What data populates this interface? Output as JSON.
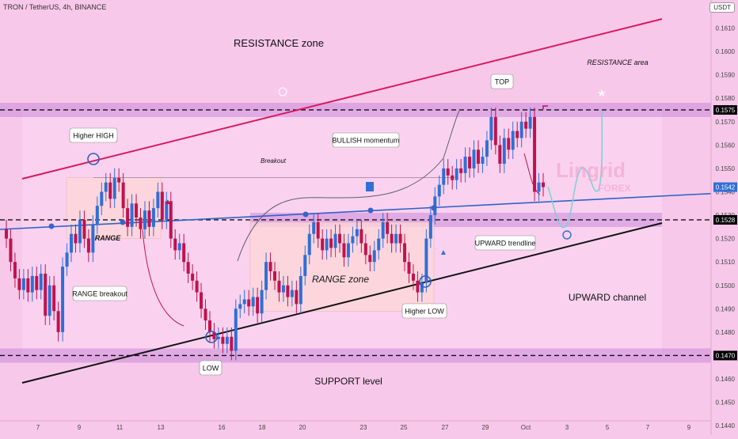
{
  "header": {
    "symbol": "TRON / TetherUS, 4h, BINANCE",
    "currency": "USDT"
  },
  "watermark": {
    "brand": "Lingrid",
    "sub": "FOREX"
  },
  "colors": {
    "background": "#f8c8ea",
    "up": "#2f6fd6",
    "down": "#c0124e",
    "resistance_line": "#d8195e",
    "support_line": "#111111",
    "trendline": "#2d62c8",
    "zone_band": "#c07ad6",
    "range_box": "#ffd8d8",
    "projection": "#7fd0d8"
  },
  "chart_data": {
    "type": "candlestick",
    "title": "",
    "xlabel": "",
    "ylabel": "",
    "x_ticks": [
      "7",
      "9",
      "11",
      "13",
      "16",
      "18",
      "20",
      "23",
      "25",
      "27",
      "29",
      "Oct",
      "3",
      "5",
      "7",
      "9"
    ],
    "y_ticks": [
      "0.1610",
      "0.1600",
      "0.1590",
      "0.1580",
      "0.1570",
      "0.1560",
      "0.1550",
      "0.1540",
      "0.1530",
      "0.1520",
      "0.1510",
      "0.1500",
      "0.1490",
      "0.1480",
      "0.1460",
      "0.1450",
      "0.1440"
    ],
    "ylim": [
      0.1436,
      0.1622
    ],
    "price_labels": [
      {
        "value": 0.1575,
        "text": "0.1575",
        "color": "#000000"
      },
      {
        "value": 0.1542,
        "text": "0.1542",
        "color": "#2f6fd6"
      },
      {
        "value": 0.1528,
        "text": "0.1528",
        "color": "#000000"
      },
      {
        "value": 0.147,
        "text": "0.1470",
        "color": "#000000"
      }
    ],
    "key_levels": [
      0.1575,
      0.1528,
      0.147
    ],
    "series": [
      {
        "name": "",
        "values": [
          0.152,
          0.151,
          0.1503,
          0.1498,
          0.1503,
          0.1497,
          0.1504,
          0.1498,
          0.1505,
          0.1487,
          0.15,
          0.1489,
          0.148,
          0.1508,
          0.1514,
          0.1522,
          0.1518,
          0.1528,
          0.152,
          0.1514,
          0.1526,
          0.1534,
          0.154,
          0.1544,
          0.1537,
          0.1546,
          0.1544,
          0.1533,
          0.1525,
          0.1535,
          0.1529,
          0.1524,
          0.1532,
          0.1525,
          0.1533,
          0.154,
          0.1528,
          0.1536,
          0.152,
          0.1515,
          0.1518,
          0.151,
          0.1505,
          0.1502,
          0.1497,
          0.149,
          0.1485,
          0.148,
          0.1477,
          0.1478,
          0.1475,
          0.1478,
          0.1472,
          0.149,
          0.1492,
          0.1494,
          0.1491,
          0.1495,
          0.1488,
          0.1498,
          0.151,
          0.1506,
          0.1502,
          0.1497,
          0.15,
          0.1495,
          0.1498,
          0.1492,
          0.1504,
          0.1513,
          0.1522,
          0.1527,
          0.152,
          0.1515,
          0.152,
          0.1516,
          0.1522,
          0.1518,
          0.1512,
          0.1518,
          0.1521,
          0.1524,
          0.1518,
          0.1513,
          0.151,
          0.1515,
          0.152,
          0.1527,
          0.1522,
          0.1518,
          0.1522,
          0.1518,
          0.151,
          0.1505,
          0.1502,
          0.1497,
          0.1501,
          0.152,
          0.153,
          0.1538,
          0.1543,
          0.155,
          0.1547,
          0.1545,
          0.155,
          0.1548,
          0.1555,
          0.155,
          0.1558,
          0.1552,
          0.1555,
          0.1562,
          0.1572,
          0.156,
          0.1552,
          0.1563,
          0.1558,
          0.1566,
          0.1563,
          0.157,
          0.1567,
          0.1572,
          0.154,
          0.1544,
          0.1542
        ]
      }
    ],
    "annotations": [
      {
        "id": "resistance-zone",
        "text": "RESISTANCE zone"
      },
      {
        "id": "resistance-area",
        "text": "RESISTANCE area"
      },
      {
        "id": "top",
        "text": "TOP"
      },
      {
        "id": "higher-high",
        "text": "Higher HIGH"
      },
      {
        "id": "breakout",
        "text": "Breakout"
      },
      {
        "id": "bullish-momentum",
        "text": "BULLISH momentum"
      },
      {
        "id": "range",
        "text": "RANGE"
      },
      {
        "id": "range-breakout",
        "text": "RANGE breakout"
      },
      {
        "id": "range-zone",
        "text": "RANGE zone"
      },
      {
        "id": "higher-low",
        "text": "Higher LOW"
      },
      {
        "id": "upward-trendline",
        "text": "UPWARD trendline"
      },
      {
        "id": "upward-channel",
        "text": "UPWARD channel"
      },
      {
        "id": "low",
        "text": "LOW"
      },
      {
        "id": "support-level",
        "text": "SUPPORT level"
      }
    ]
  }
}
